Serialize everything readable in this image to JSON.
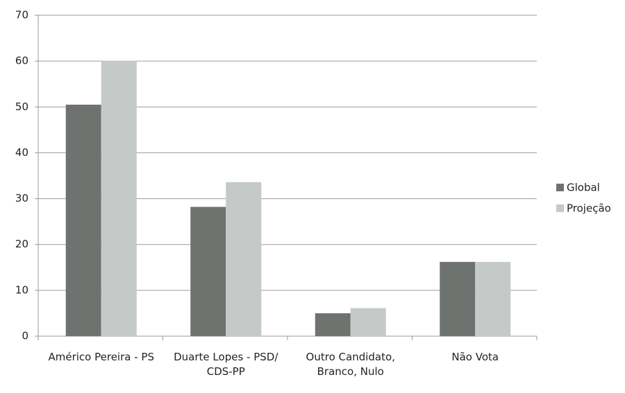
{
  "chart_data": {
    "type": "bar",
    "categories": [
      "Américo Pereira - PS",
      "Duarte Lopes - PSD/ CDS-PP",
      "Outro Candidato, Branco, Nulo",
      "Não Vota"
    ],
    "series": [
      {
        "name": "Global",
        "color": "#6e7370",
        "values": [
          50.5,
          28.2,
          5.0,
          16.2
        ]
      },
      {
        "name": "Projeção",
        "color": "#c5c9c8",
        "values": [
          60.1,
          33.6,
          6.1,
          16.2
        ]
      }
    ],
    "ylim": [
      0,
      70
    ],
    "yticks": [
      0,
      10,
      20,
      30,
      40,
      50,
      60,
      70
    ],
    "grid": true,
    "legend": "right"
  }
}
